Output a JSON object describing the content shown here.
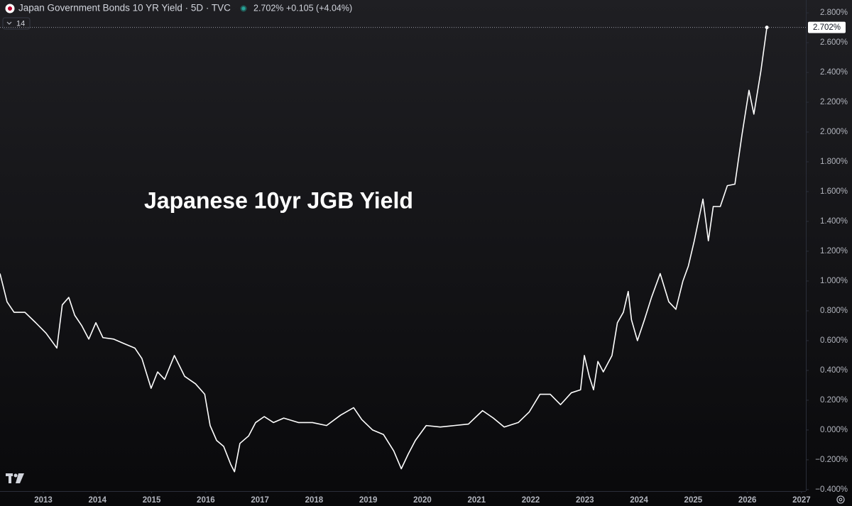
{
  "chart_data": {
    "type": "line",
    "header_title": "Japan Government Bonds 10 YR Yield · 5D · TVC",
    "header_price": "2.702%",
    "header_change": "+0.105 (+4.04%)",
    "indicator_length": "14",
    "annotation": "Japanese 10yr JGB Yield",
    "color": "#ffffff",
    "x": [
      2012.2,
      2012.33,
      2012.46,
      2012.66,
      2012.86,
      2013.05,
      2013.25,
      2013.35,
      2013.47,
      2013.58,
      2013.71,
      2013.84,
      2013.97,
      2014.1,
      2014.3,
      2014.49,
      2014.69,
      2014.82,
      2014.99,
      2015.11,
      2015.24,
      2015.42,
      2015.61,
      2015.81,
      2015.98,
      2016.08,
      2016.2,
      2016.33,
      2016.46,
      2016.53,
      2016.63,
      2016.79,
      2016.92,
      2017.08,
      2017.25,
      2017.44,
      2017.71,
      2017.97,
      2018.23,
      2018.49,
      2018.73,
      2018.88,
      2019.08,
      2019.28,
      2019.47,
      2019.61,
      2019.74,
      2019.87,
      2020.07,
      2020.33,
      2020.59,
      2020.85,
      2021.11,
      2021.31,
      2021.51,
      2021.77,
      2021.97,
      2022.17,
      2022.36,
      2022.55,
      2022.75,
      2022.92,
      2022.99,
      2023.08,
      2023.16,
      2023.24,
      2023.34,
      2023.5,
      2023.6,
      2023.71,
      2023.8,
      2023.86,
      2023.97,
      2024.1,
      2024.23,
      2024.39,
      2024.55,
      2024.68,
      2024.81,
      2024.91,
      2025.02,
      2025.18,
      2025.28,
      2025.37,
      2025.5,
      2025.63,
      2025.77,
      2025.9,
      2026.03,
      2026.12,
      2026.25,
      2026.36
    ],
    "values": [
      1.05,
      0.86,
      0.79,
      0.79,
      0.72,
      0.65,
      0.55,
      0.84,
      0.89,
      0.77,
      0.7,
      0.61,
      0.72,
      0.62,
      0.61,
      0.58,
      0.55,
      0.48,
      0.28,
      0.39,
      0.34,
      0.5,
      0.36,
      0.31,
      0.24,
      0.03,
      -0.07,
      -0.11,
      -0.23,
      -0.28,
      -0.09,
      -0.04,
      0.05,
      0.09,
      0.05,
      0.08,
      0.05,
      0.05,
      0.03,
      0.1,
      0.15,
      0.07,
      0.0,
      -0.03,
      -0.14,
      -0.26,
      -0.16,
      -0.07,
      0.03,
      0.02,
      0.03,
      0.04,
      0.13,
      0.08,
      0.02,
      0.05,
      0.12,
      0.24,
      0.24,
      0.17,
      0.25,
      0.27,
      0.5,
      0.36,
      0.27,
      0.46,
      0.39,
      0.5,
      0.72,
      0.79,
      0.93,
      0.74,
      0.6,
      0.74,
      0.89,
      1.05,
      0.86,
      0.81,
      1.0,
      1.1,
      1.27,
      1.55,
      1.27,
      1.5,
      1.5,
      1.64,
      1.65,
      1.98,
      2.28,
      2.12,
      2.41,
      2.702
    ],
    "last_value_label": "2.702%",
    "xlim": [
      2012.2,
      2027.08
    ],
    "ylim": [
      -0.41,
      2.886
    ],
    "xticks": [
      2013,
      2014,
      2015,
      2016,
      2017,
      2018,
      2019,
      2020,
      2021,
      2022,
      2023,
      2024,
      2025,
      2026,
      2027
    ],
    "yticks": [
      {
        "value": -0.4,
        "label": "−0.400%"
      },
      {
        "value": -0.2,
        "label": "−0.200%"
      },
      {
        "value": 0,
        "label": "0.000%"
      },
      {
        "value": 0.2,
        "label": "0.200%"
      },
      {
        "value": 0.4,
        "label": "0.400%"
      },
      {
        "value": 0.6,
        "label": "0.600%"
      },
      {
        "value": 0.8,
        "label": "0.800%"
      },
      {
        "value": 1.0,
        "label": "1.000%"
      },
      {
        "value": 1.2,
        "label": "1.200%"
      },
      {
        "value": 1.4,
        "label": "1.400%"
      },
      {
        "value": 1.6,
        "label": "1.600%"
      },
      {
        "value": 1.8,
        "label": "1.800%"
      },
      {
        "value": 2.0,
        "label": "2.000%"
      },
      {
        "value": 2.2,
        "label": "2.200%"
      },
      {
        "value": 2.4,
        "label": "2.400%"
      },
      {
        "value": 2.6,
        "label": "2.600%"
      },
      {
        "value": 2.8,
        "label": "2.800%"
      }
    ]
  }
}
